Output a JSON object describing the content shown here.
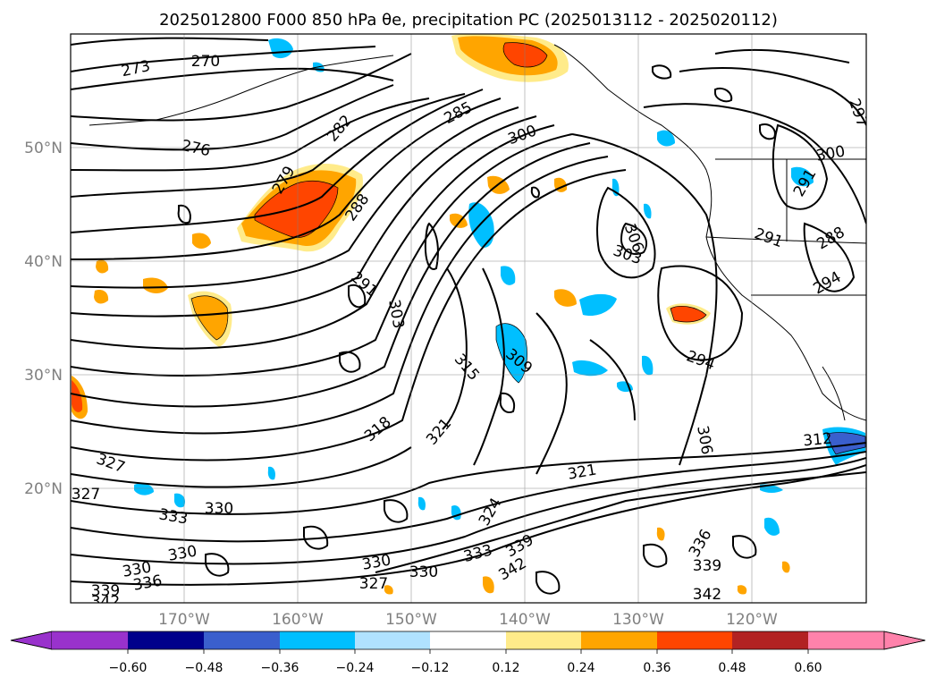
{
  "title": "2025012800 F000 850 hPa θe, precipitation PC (2025013112 - 2025020112)",
  "map": {
    "lat_ticks": [
      "20°N",
      "30°N",
      "40°N",
      "50°N"
    ],
    "lon_ticks": [
      "170°W",
      "160°W",
      "150°W",
      "140°W",
      "130°W",
      "120°W"
    ],
    "contour_labels": [
      "273",
      "270",
      "276",
      "282",
      "285",
      "300",
      "279",
      "288",
      "291",
      "306",
      "303",
      "291",
      "288",
      "294",
      "291",
      "297",
      "300",
      "309",
      "315",
      "303",
      "318",
      "321",
      "294",
      "306",
      "312",
      "321",
      "324",
      "327",
      "327",
      "333",
      "330",
      "333",
      "330",
      "330",
      "330",
      "339",
      "342",
      "336",
      "330",
      "339",
      "336",
      "327",
      "342",
      "339",
      "342"
    ],
    "fill_palette": {
      "neg_light": "#b0e2ff",
      "neg_mid": "#00bfff",
      "pos_light": "#ffeb8a",
      "pos_mid": "#ffa500",
      "pos_high": "#ff4500"
    }
  },
  "colorbar": {
    "tick_labels": [
      "−0.60",
      "−0.48",
      "−0.36",
      "−0.24",
      "−0.12",
      "0.12",
      "0.24",
      "0.36",
      "0.48",
      "0.60"
    ],
    "colors": [
      "#9932cc",
      "#00008b",
      "#3a5fcd",
      "#00bfff",
      "#b0e2ff",
      "#ffffff",
      "#ffeb8a",
      "#ffa500",
      "#ff4500",
      "#b22222",
      "#ff82ab"
    ]
  }
}
